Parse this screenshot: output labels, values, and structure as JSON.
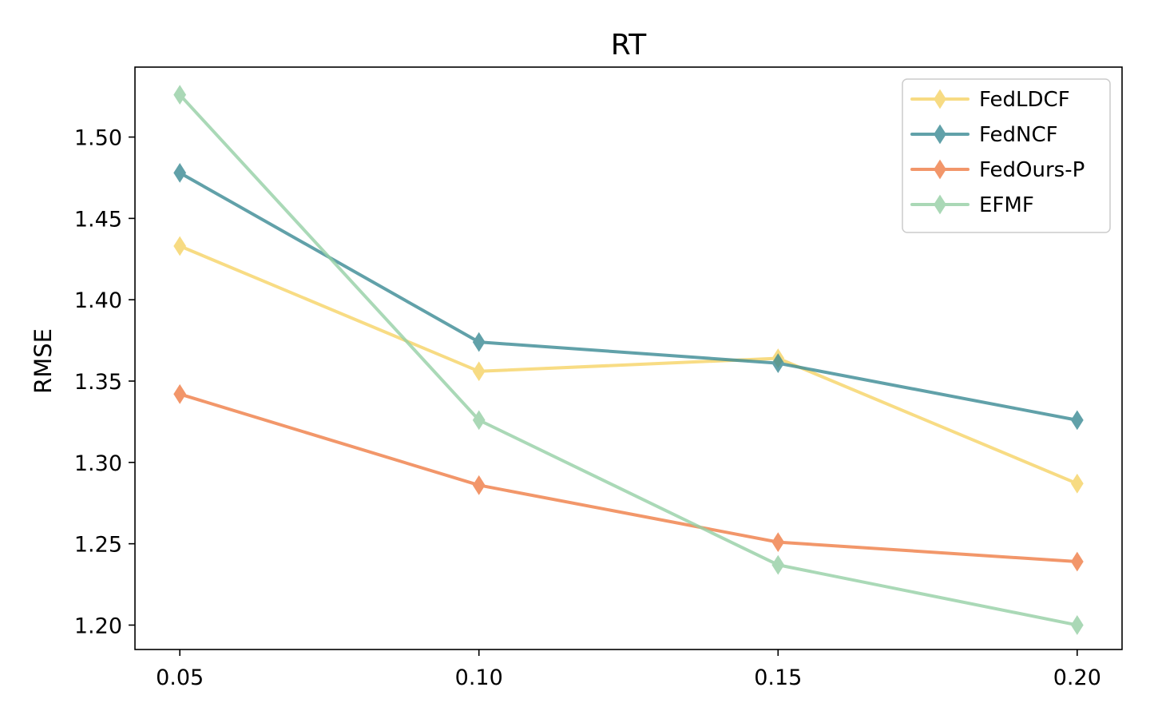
{
  "chart_data": {
    "type": "line",
    "title": "RT",
    "xlabel": "",
    "ylabel": "RMSE",
    "x": [
      0.05,
      0.1,
      0.15,
      0.2
    ],
    "x_tick_labels": [
      "0.05",
      "0.10",
      "0.15",
      "0.20"
    ],
    "y_ticks": [
      1.2,
      1.25,
      1.3,
      1.35,
      1.4,
      1.45,
      1.5
    ],
    "y_tick_labels": [
      "1.20",
      "1.25",
      "1.30",
      "1.35",
      "1.40",
      "1.45",
      "1.50"
    ],
    "ylim": [
      1.185,
      1.543
    ],
    "xlim": [
      0.0425,
      0.2075
    ],
    "grid": false,
    "legend_position": "top-right",
    "marker": "thin-diamond",
    "series": [
      {
        "name": "FedLDCF",
        "color": "#f6d365",
        "values": [
          1.433,
          1.356,
          1.364,
          1.287
        ]
      },
      {
        "name": "FedNCF",
        "color": "#3a8a94",
        "values": [
          1.478,
          1.374,
          1.361,
          1.326
        ]
      },
      {
        "name": "FedOurs-P",
        "color": "#ef7d45",
        "values": [
          1.342,
          1.286,
          1.251,
          1.239
        ]
      },
      {
        "name": "EFMF",
        "color": "#95cfa5",
        "values": [
          1.526,
          1.326,
          1.237,
          1.2
        ]
      }
    ]
  }
}
